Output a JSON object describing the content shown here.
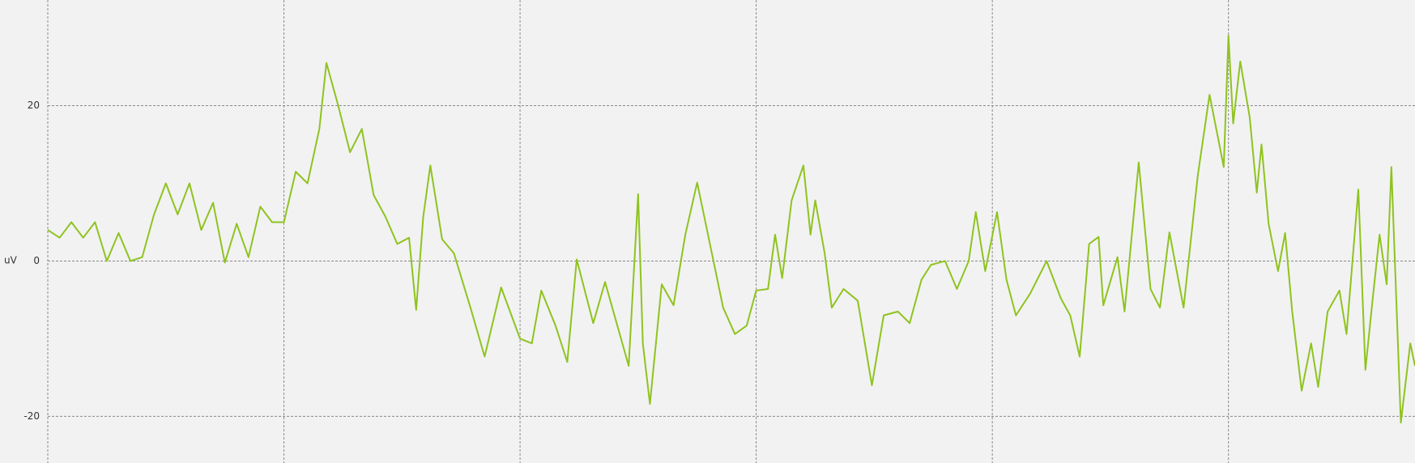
{
  "chart_data": {
    "type": "line",
    "y_label": "uV",
    "color": "#8fc31f",
    "grid": true,
    "xlim": [
      0,
      5.79
    ],
    "xticks": [
      0,
      1,
      2,
      3,
      4,
      5
    ],
    "ylim": [
      -26,
      33.6
    ],
    "yticks": [
      -20,
      0,
      20
    ],
    "x": [
      0,
      0.05,
      0.1,
      0.15,
      0.2,
      0.25,
      0.3,
      0.35,
      0.4,
      0.45,
      0.5,
      0.55,
      0.6,
      0.65,
      0.7,
      0.75,
      0.8,
      0.85,
      0.9,
      0.95,
      1.0,
      1.05,
      1.1,
      1.15,
      1.18,
      1.23,
      1.28,
      1.33,
      1.38,
      1.43,
      1.48,
      1.53,
      1.56,
      1.59,
      1.62,
      1.67,
      1.72,
      1.79,
      1.85,
      1.92,
      2.0,
      2.05,
      2.09,
      2.15,
      2.2,
      2.24,
      2.31,
      2.36,
      2.46,
      2.5,
      2.52,
      2.55,
      2.6,
      2.65,
      2.7,
      2.75,
      2.8,
      2.86,
      2.91,
      2.96,
      3.0,
      3.05,
      3.08,
      3.11,
      3.15,
      3.2,
      3.23,
      3.25,
      3.29,
      3.32,
      3.37,
      3.43,
      3.49,
      3.54,
      3.6,
      3.65,
      3.7,
      3.74,
      3.8,
      3.85,
      3.9,
      3.93,
      3.97,
      4.02,
      4.06,
      4.1,
      4.16,
      4.23,
      4.29,
      4.33,
      4.37,
      4.41,
      4.45,
      4.47,
      4.53,
      4.56,
      4.62,
      4.67,
      4.71,
      4.75,
      4.81,
      4.87,
      4.92,
      4.98,
      5.0,
      5.02,
      5.05,
      5.09,
      5.12,
      5.14,
      5.17,
      5.21,
      5.24,
      5.27,
      5.31,
      5.35,
      5.38,
      5.42,
      5.47,
      5.5,
      5.55,
      5.58,
      5.61,
      5.64,
      5.67,
      5.69,
      5.73,
      5.77,
      5.79
    ],
    "values": [
      4,
      3,
      5,
      3,
      5,
      0,
      3.6,
      0,
      0.5,
      6,
      10,
      6,
      10,
      4,
      7.5,
      -0.2,
      4.8,
      0.5,
      7,
      5,
      5,
      11.5,
      10,
      17,
      25.5,
      20,
      14,
      17,
      8.5,
      5.7,
      2.2,
      3,
      -6.3,
      5.7,
      12.3,
      2.8,
      1,
      -6,
      -12.3,
      -3.4,
      -10,
      -10.6,
      -3.8,
      -8.3,
      -13,
      0.2,
      -8,
      -2.7,
      -13.5,
      8.6,
      -10.6,
      -18.4,
      -3,
      -5.7,
      3.4,
      10.1,
      2.8,
      -6,
      -9.4,
      -8.3,
      -3.8,
      -3.6,
      3.4,
      -2.2,
      7.8,
      12.3,
      3.4,
      7.8,
      1,
      -6,
      -3.6,
      -5.1,
      -16,
      -7,
      -6.5,
      -8,
      -2.4,
      -0.5,
      0,
      -3.6,
      0,
      6.3,
      -1.3,
      6.3,
      -2.4,
      -7,
      -4.2,
      0,
      -4.8,
      -7,
      -12.3,
      2.2,
      3.1,
      -5.7,
      0.5,
      -6.5,
      12.7,
      -3.6,
      -6,
      3.7,
      -6,
      11,
      21.4,
      12.1,
      29,
      17.7,
      25.7,
      18.5,
      8.8,
      15,
      4.8,
      -1.3,
      3.6,
      -6.5,
      -16.7,
      -10.6,
      -16.2,
      -6.5,
      -3.8,
      -9.4,
      9.2,
      -14,
      -5.1,
      3.4,
      -3,
      12.1,
      -20.8,
      -10.6,
      -13.5
    ]
  }
}
